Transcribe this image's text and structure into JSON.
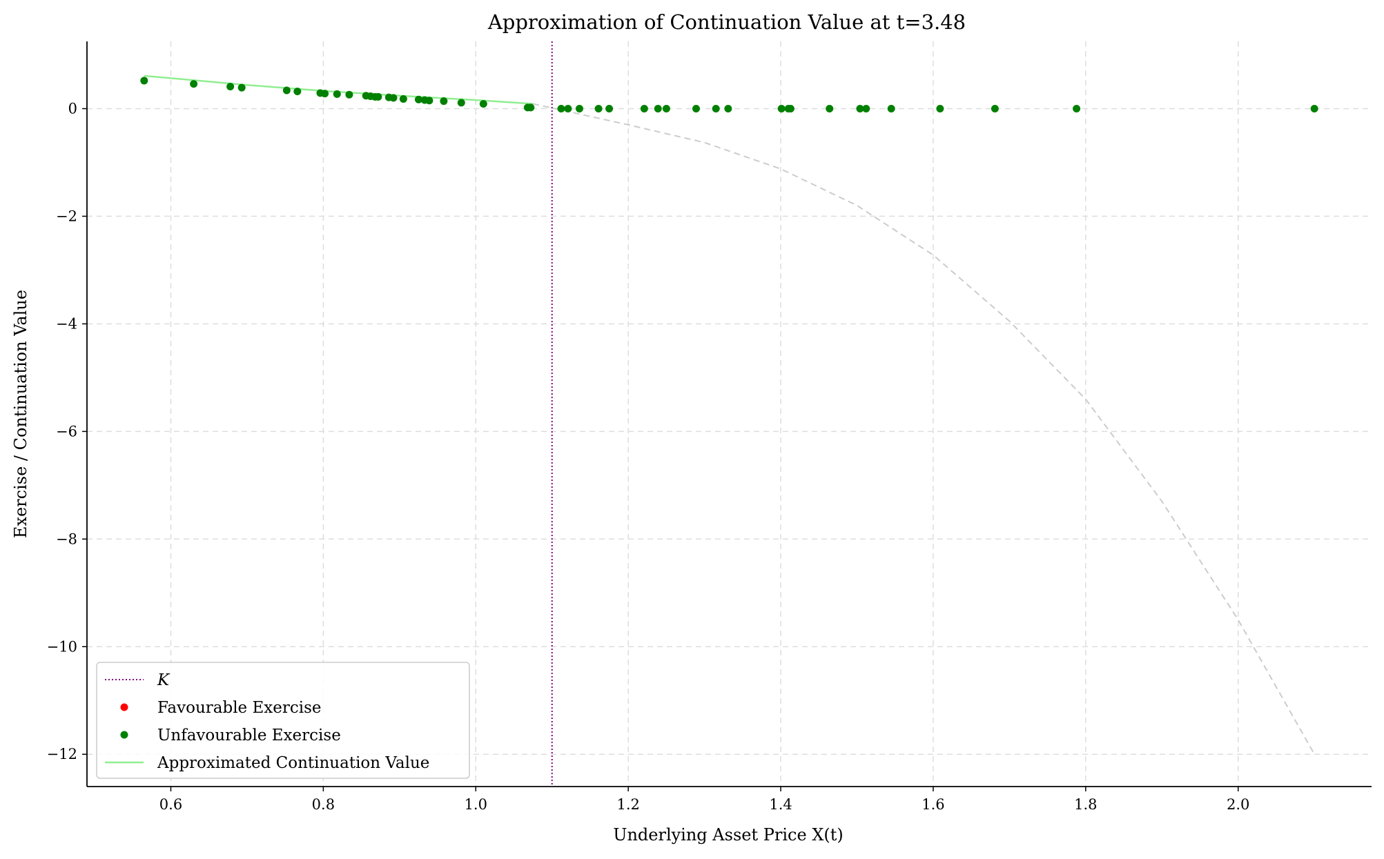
{
  "chart_data": {
    "type": "scatter",
    "title": "Approximation of Continuation Value at t=3.48",
    "xlabel": "Underlying Asset Price X(t)",
    "ylabel": "Exercise / Continuation Value",
    "xlim": [
      0.49,
      2.175
    ],
    "ylim": [
      -12.6,
      1.25
    ],
    "xticks": [
      0.6,
      0.8,
      1.0,
      1.2,
      1.4,
      1.6,
      1.8,
      2.0
    ],
    "xtick_labels": [
      "0.6",
      "0.8",
      "1.0",
      "1.2",
      "1.4",
      "1.6",
      "1.8",
      "2.0"
    ],
    "yticks": [
      0,
      -2,
      -4,
      -6,
      -8,
      -10,
      -12
    ],
    "ytick_labels": [
      "0",
      "−2",
      "−4",
      "−6",
      "−8",
      "−10",
      "−12"
    ],
    "grid": true,
    "legend_position": "bottom-left",
    "strike": {
      "name": "K",
      "x": 1.1,
      "color": "#800080",
      "style": "dotted"
    },
    "legend": [
      {
        "label": "K",
        "kind": "dotted-line",
        "color": "#800080"
      },
      {
        "label": "Favourable Exercise",
        "kind": "dot",
        "color": "#ff0000"
      },
      {
        "label": "Unfavourable Exercise",
        "kind": "dot",
        "color": "#008000"
      },
      {
        "label": "Approximated Continuation Value",
        "kind": "line",
        "color": "#90ee90"
      }
    ],
    "series": [
      {
        "name": "Favourable Exercise",
        "color": "#ff0000",
        "x": [],
        "y": []
      },
      {
        "name": "Unfavourable Exercise",
        "color": "#008000",
        "x": [
          0.565,
          0.63,
          0.678,
          0.693,
          0.752,
          0.766,
          0.796,
          0.802,
          0.818,
          0.834,
          0.856,
          0.862,
          0.868,
          0.872,
          0.886,
          0.892,
          0.905,
          0.925,
          0.933,
          0.939,
          0.958,
          0.981,
          1.01,
          1.068,
          1.072,
          1.112,
          1.121,
          1.136,
          1.161,
          1.175,
          1.221,
          1.239,
          1.25,
          1.289,
          1.315,
          1.331,
          1.401,
          1.41,
          1.413,
          1.464,
          1.504,
          1.512,
          1.545,
          1.609,
          1.681,
          1.788,
          2.1
        ],
        "y": [
          0.52,
          0.46,
          0.41,
          0.39,
          0.34,
          0.32,
          0.29,
          0.28,
          0.27,
          0.26,
          0.24,
          0.23,
          0.22,
          0.22,
          0.21,
          0.2,
          0.18,
          0.17,
          0.16,
          0.15,
          0.14,
          0.11,
          0.09,
          0.02,
          0.02,
          0,
          0,
          0,
          0,
          0,
          0,
          0,
          0,
          0,
          0,
          0,
          0,
          0,
          0,
          0,
          0,
          0,
          0,
          0,
          0,
          0,
          0
        ]
      },
      {
        "name": "Approximated Continuation Value",
        "color": "#90ee90",
        "line": "solid",
        "x": [
          0.565,
          0.7,
          0.8,
          0.9,
          1.0,
          1.075
        ],
        "y": [
          0.61,
          0.44,
          0.33,
          0.24,
          0.16,
          0.09
        ]
      },
      {
        "color": "#cccccc",
        "line": "dashed",
        "x": [
          1.075,
          1.2,
          1.3,
          1.4,
          1.5,
          1.6,
          1.7,
          1.8,
          1.9,
          2.0,
          2.1
        ],
        "y": [
          0.09,
          -0.3,
          -0.63,
          -1.12,
          -1.8,
          -2.72,
          -3.95,
          -5.4,
          -7.3,
          -9.5,
          -12.0
        ]
      }
    ]
  }
}
